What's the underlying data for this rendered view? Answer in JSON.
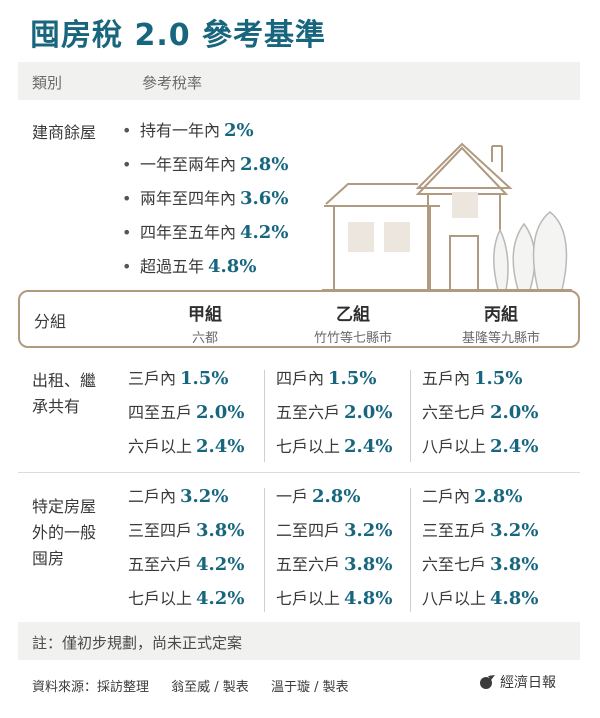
{
  "title": "囤房稅 2.0 參考基準",
  "header": {
    "category": "類別",
    "rate": "參考稅率"
  },
  "builder": {
    "label": "建商餘屋",
    "items": [
      {
        "text": "持有一年內",
        "rate": "2%"
      },
      {
        "text": "一年至兩年內",
        "rate": "2.8%"
      },
      {
        "text": "兩年至四年內",
        "rate": "3.6%"
      },
      {
        "text": "四年至五年內",
        "rate": "4.2%"
      },
      {
        "text": "超過五年",
        "rate": "4.8%"
      }
    ]
  },
  "groups": {
    "label": "分組",
    "a": {
      "name": "甲組",
      "desc": "六都"
    },
    "b": {
      "name": "乙組",
      "desc": "竹竹等七縣市"
    },
    "c": {
      "name": "丙組",
      "desc": "基隆等九縣市"
    }
  },
  "rental": {
    "label_line1": "出租、繼",
    "label_line2": "承共有",
    "a": [
      {
        "text": "三戶內",
        "rate": "1.5%"
      },
      {
        "text": "四至五戶",
        "rate": "2.0%"
      },
      {
        "text": "六戶以上",
        "rate": "2.4%"
      }
    ],
    "b": [
      {
        "text": "四戶內",
        "rate": "1.5%"
      },
      {
        "text": "五至六戶",
        "rate": "2.0%"
      },
      {
        "text": "七戶以上",
        "rate": "2.4%"
      }
    ],
    "c": [
      {
        "text": "五戶內",
        "rate": "1.5%"
      },
      {
        "text": "六至七戶",
        "rate": "2.0%"
      },
      {
        "text": "八戶以上",
        "rate": "2.4%"
      }
    ]
  },
  "general": {
    "label_line1": "特定房屋",
    "label_line2": "外的一般",
    "label_line3": "囤房",
    "a": [
      {
        "text": "二戶內",
        "rate": "3.2%"
      },
      {
        "text": "三至四戶",
        "rate": "3.8%"
      },
      {
        "text": "五至六戶",
        "rate": "4.2%"
      },
      {
        "text": "七戶以上",
        "rate": "4.2%"
      }
    ],
    "b": [
      {
        "text": "一戶",
        "rate": "2.8%"
      },
      {
        "text": "二至四戶",
        "rate": "3.2%"
      },
      {
        "text": "五至六戶",
        "rate": "3.8%"
      },
      {
        "text": "七戶以上",
        "rate": "4.8%"
      }
    ],
    "c": [
      {
        "text": "二戶內",
        "rate": "2.8%"
      },
      {
        "text": "三至五戶",
        "rate": "3.2%"
      },
      {
        "text": "六至七戶",
        "rate": "3.8%"
      },
      {
        "text": "八戶以上",
        "rate": "4.8%"
      }
    ]
  },
  "note": "註：僅初步規劃，尚未正式定案",
  "footer": {
    "source": "資料來源：採訪整理",
    "credit1": "翁至威 / 製表",
    "credit2": "溫于璇 / 製表",
    "logo": "經濟日報"
  },
  "colors": {
    "accent": "#17667e",
    "house": "#b09a80",
    "band": "#f1f1ef"
  }
}
